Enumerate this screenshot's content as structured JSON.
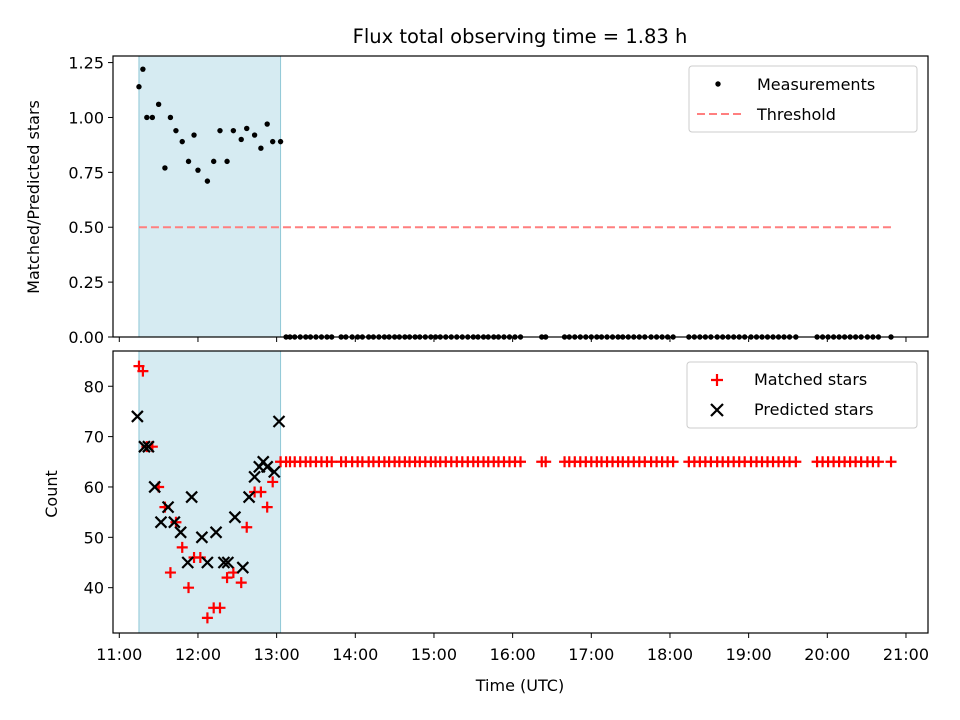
{
  "chart_data": [
    {
      "type": "scatter",
      "title": "Flux total observing time = 1.83 h",
      "xlabel": "",
      "ylabel": "Matched/Predicted stars",
      "xlim": [
        10.92,
        21.28
      ],
      "ylim": [
        0.0,
        1.28
      ],
      "yticks": [
        0.0,
        0.25,
        0.5,
        0.75,
        1.0,
        1.25
      ],
      "ytick_labels": [
        "0.00",
        "0.25",
        "0.50",
        "0.75",
        "1.00",
        "1.25"
      ],
      "xticks": [
        11,
        12,
        13,
        14,
        15,
        16,
        17,
        18,
        19,
        20,
        21
      ],
      "shaded_span": [
        11.25,
        13.05
      ],
      "shaded_color": "#add8e6",
      "legend_position": "upper right",
      "series": [
        {
          "name": "Measurements",
          "marker": "dot",
          "color": "#000000",
          "x": [
            11.25,
            11.3,
            11.35,
            11.42,
            11.5,
            11.58,
            11.65,
            11.72,
            11.8,
            11.88,
            11.95,
            12.0,
            12.12,
            12.2,
            12.28,
            12.37,
            12.45,
            12.55,
            12.62,
            12.72,
            12.8,
            12.88,
            12.95,
            13.05
          ],
          "y": [
            1.14,
            1.22,
            1.0,
            1.0,
            1.06,
            0.77,
            1.0,
            0.94,
            0.89,
            0.8,
            0.92,
            0.76,
            0.71,
            0.8,
            0.94,
            0.8,
            0.94,
            0.9,
            0.95,
            0.92,
            0.86,
            0.97,
            0.89,
            0.89
          ],
          "zero_x": [
            13.12,
            13.17,
            13.23,
            13.3,
            13.37,
            13.43,
            13.5,
            13.57,
            13.64,
            13.7,
            13.82,
            13.88,
            13.96,
            14.03,
            14.09,
            14.17,
            14.23,
            14.3,
            14.37,
            14.43,
            14.5,
            14.56,
            14.63,
            14.69,
            14.76,
            14.82,
            14.89,
            14.96,
            15.02,
            15.08,
            15.15,
            15.22,
            15.29,
            15.36,
            15.43,
            15.5,
            15.56,
            15.63,
            15.69,
            15.76,
            15.82,
            15.89,
            15.96,
            16.03,
            16.1,
            16.37,
            16.42,
            16.66,
            16.72,
            16.79,
            16.86,
            16.93,
            17.0,
            17.07,
            17.13,
            17.2,
            17.27,
            17.34,
            17.4,
            17.47,
            17.54,
            17.61,
            17.68,
            17.76,
            17.83,
            17.9,
            17.97,
            18.04,
            18.24,
            18.31,
            18.38,
            18.45,
            18.52,
            18.6,
            18.67,
            18.74,
            18.81,
            18.88,
            18.95,
            19.03,
            19.1,
            19.17,
            19.24,
            19.31,
            19.38,
            19.45,
            19.52,
            19.6,
            19.87,
            19.94,
            20.01,
            20.08,
            20.15,
            20.22,
            20.29,
            20.36,
            20.43,
            20.51,
            20.58,
            20.65,
            20.81
          ]
        },
        {
          "name": "Threshold",
          "line": "dashed",
          "color": "#ff7f7f",
          "x": [
            11.25,
            20.81
          ],
          "y": [
            0.5,
            0.5
          ]
        }
      ]
    },
    {
      "type": "scatter",
      "xlabel": "Time (UTC)",
      "ylabel": "Count",
      "xlim": [
        10.92,
        21.28
      ],
      "ylim": [
        31.0,
        87.0
      ],
      "yticks": [
        40,
        50,
        60,
        70,
        80
      ],
      "ytick_labels": [
        "40",
        "50",
        "60",
        "70",
        "80"
      ],
      "xticks": [
        11,
        12,
        13,
        14,
        15,
        16,
        17,
        18,
        19,
        20,
        21
      ],
      "xtick_labels": [
        "11:00",
        "12:00",
        "13:00",
        "14:00",
        "15:00",
        "16:00",
        "17:00",
        "18:00",
        "19:00",
        "20:00",
        "21:00"
      ],
      "shaded_span": [
        11.25,
        13.05
      ],
      "legend_position": "upper right",
      "series": [
        {
          "name": "Matched stars",
          "marker": "plus",
          "color": "#ff0000",
          "x": [
            11.25,
            11.3,
            11.35,
            11.42,
            11.5,
            11.58,
            11.65,
            11.72,
            11.8,
            11.88,
            11.95,
            12.03,
            12.12,
            12.2,
            12.28,
            12.37,
            12.45,
            12.55,
            12.62,
            12.72,
            12.8,
            12.88,
            12.95,
            13.05,
            13.12,
            13.17,
            13.23,
            13.3,
            13.37,
            13.43,
            13.5,
            13.57,
            13.64,
            13.7,
            13.82,
            13.88,
            13.96,
            14.03,
            14.09,
            14.17,
            14.23,
            14.3,
            14.37,
            14.43,
            14.5,
            14.56,
            14.63,
            14.69,
            14.76,
            14.82,
            14.89,
            14.96,
            15.02,
            15.08,
            15.15,
            15.22,
            15.29,
            15.36,
            15.43,
            15.5,
            15.56,
            15.63,
            15.69,
            15.76,
            15.82,
            15.89,
            15.96,
            16.03,
            16.1,
            16.37,
            16.42,
            16.66,
            16.72,
            16.79,
            16.86,
            16.93,
            17.0,
            17.07,
            17.13,
            17.2,
            17.27,
            17.34,
            17.4,
            17.47,
            17.54,
            17.61,
            17.68,
            17.76,
            17.83,
            17.9,
            17.97,
            18.04,
            18.24,
            18.31,
            18.38,
            18.45,
            18.52,
            18.6,
            18.67,
            18.74,
            18.81,
            18.88,
            18.95,
            19.03,
            19.1,
            19.17,
            19.24,
            19.31,
            19.38,
            19.45,
            19.52,
            19.6,
            19.87,
            19.94,
            20.01,
            20.08,
            20.15,
            20.22,
            20.29,
            20.36,
            20.43,
            20.51,
            20.58,
            20.65,
            20.81
          ],
          "y": [
            84,
            83,
            68,
            68,
            60,
            56,
            43,
            53,
            48,
            40,
            46,
            46,
            34,
            36,
            36,
            42,
            43,
            41,
            52,
            59,
            59,
            56,
            61,
            65,
            65,
            65,
            65,
            65,
            65,
            65,
            65,
            65,
            65,
            65,
            65,
            65,
            65,
            65,
            65,
            65,
            65,
            65,
            65,
            65,
            65,
            65,
            65,
            65,
            65,
            65,
            65,
            65,
            65,
            65,
            65,
            65,
            65,
            65,
            65,
            65,
            65,
            65,
            65,
            65,
            65,
            65,
            65,
            65,
            65,
            65,
            65,
            65,
            65,
            65,
            65,
            65,
            65,
            65,
            65,
            65,
            65,
            65,
            65,
            65,
            65,
            65,
            65,
            65,
            65,
            65,
            65,
            65,
            65,
            65,
            65,
            65,
            65,
            65,
            65,
            65,
            65,
            65,
            65,
            65,
            65,
            65,
            65,
            65,
            65,
            65,
            65,
            65,
            65,
            65,
            65,
            65,
            65,
            65,
            65,
            65,
            65,
            65,
            65,
            65,
            65
          ]
        },
        {
          "name": "Predicted stars",
          "marker": "x",
          "color": "#000000",
          "x": [
            11.23,
            11.32,
            11.37,
            11.45,
            11.53,
            11.62,
            11.7,
            11.78,
            11.87,
            11.92,
            12.05,
            12.12,
            12.23,
            12.33,
            12.38,
            12.47,
            12.57,
            12.65,
            12.72,
            12.78,
            12.83,
            12.88,
            12.97,
            13.03
          ],
          "y": [
            74,
            68,
            68,
            60,
            53,
            56,
            53,
            51,
            45,
            58,
            50,
            45,
            51,
            45,
            45,
            54,
            44,
            58,
            62,
            64,
            65,
            64,
            63,
            73
          ]
        }
      ]
    }
  ]
}
